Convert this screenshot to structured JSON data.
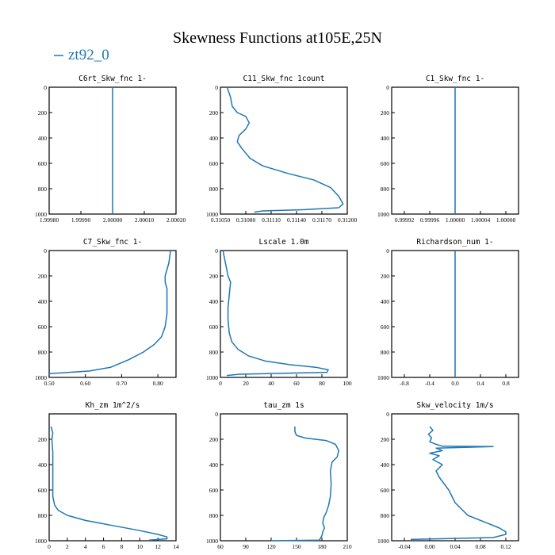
{
  "figure": {
    "title": "Skewness Functions at105E,25N",
    "legend": [
      {
        "label": "zt92_0",
        "color": "#1f77b4"
      }
    ]
  },
  "chart_data": [
    {
      "type": "line",
      "title": "C6rt_Skw_fnc  1-",
      "xlim": [
        1.9998,
        2.0002
      ],
      "ylim": [
        1000,
        0
      ],
      "xticks": [
        "1.99980",
        "1.99990",
        "2.00000",
        "2.00010",
        "2.00020"
      ],
      "yticks": [
        "0",
        "200",
        "400",
        "600",
        "800",
        "1000"
      ],
      "x": [
        2.0,
        2.0
      ],
      "y": [
        0,
        1000
      ]
    },
    {
      "type": "line",
      "title": "C11_Skw_fnc  1count",
      "xlim": [
        0.3105,
        0.312
      ],
      "ylim": [
        1000,
        0
      ],
      "xticks": [
        "0.31050",
        "0.31080",
        "0.31110",
        "0.31140",
        "0.31170",
        "0.31200"
      ],
      "yticks": [
        "0",
        "200",
        "400",
        "600",
        "800",
        "1000"
      ],
      "x": [
        0.31058,
        0.31062,
        0.31064,
        0.3107,
        0.3108,
        0.31084,
        0.3108,
        0.31072,
        0.3107,
        0.31075,
        0.31085,
        0.311,
        0.3113,
        0.3116,
        0.3118,
        0.3119,
        0.31195,
        0.3119,
        0.3115,
        0.311,
        0.3109
      ],
      "y": [
        0,
        80,
        150,
        200,
        230,
        280,
        330,
        380,
        430,
        480,
        560,
        620,
        680,
        730,
        790,
        860,
        920,
        950,
        965,
        975,
        985
      ]
    },
    {
      "type": "line",
      "title": "C1_Skw_fnc  1-",
      "xlim": [
        0.9999,
        1.0001
      ],
      "ylim": [
        1000,
        0
      ],
      "xticks": [
        "0.99992",
        "0.99996",
        "1.00000",
        "1.00004",
        "1.00008"
      ],
      "yticks": [
        "0",
        "200",
        "400",
        "600",
        "800",
        "1000"
      ],
      "x": [
        1.0,
        1.0
      ],
      "y": [
        0,
        1000
      ]
    },
    {
      "type": "line",
      "title": "C7_Skw_fnc  1-",
      "xlim": [
        0.5,
        0.85
      ],
      "ylim": [
        1000,
        0
      ],
      "xticks": [
        "0.50",
        "0.60",
        "0.70",
        "0.80"
      ],
      "yticks": [
        "0",
        "200",
        "400",
        "600",
        "800",
        "1000"
      ],
      "x": [
        0.835,
        0.83,
        0.82,
        0.82,
        0.825,
        0.825,
        0.825,
        0.82,
        0.81,
        0.79,
        0.76,
        0.72,
        0.67,
        0.61,
        0.5
      ],
      "y": [
        0,
        100,
        200,
        250,
        300,
        400,
        500,
        600,
        680,
        740,
        800,
        860,
        920,
        950,
        970
      ]
    },
    {
      "type": "line",
      "title": "Lscale  1.0m",
      "xlim": [
        0,
        100
      ],
      "ylim": [
        1000,
        0
      ],
      "xticks": [
        "0",
        "20",
        "40",
        "60",
        "80",
        "100"
      ],
      "yticks": [
        "0",
        "200",
        "400",
        "600",
        "800",
        "1000"
      ],
      "x": [
        2,
        4,
        6,
        8,
        7,
        6,
        6,
        7,
        9,
        14,
        22,
        35,
        55,
        75,
        85,
        84,
        15,
        5
      ],
      "y": [
        0,
        100,
        200,
        250,
        350,
        450,
        550,
        650,
        720,
        780,
        830,
        870,
        900,
        920,
        940,
        960,
        975,
        985
      ]
    },
    {
      "type": "line",
      "title": "Richardson_num  1-",
      "xlim": [
        -1,
        1
      ],
      "ylim": [
        1000,
        0
      ],
      "xticks": [
        "-0.8",
        "-0.4",
        "0.0",
        "0.4",
        "0.8"
      ],
      "yticks": [
        "0",
        "200",
        "400",
        "600",
        "800",
        "1000"
      ],
      "x": [
        0,
        0
      ],
      "y": [
        0,
        1000
      ]
    },
    {
      "type": "line",
      "title": "Kh_zm   1m^2/s",
      "xlim": [
        0,
        14
      ],
      "ylim": [
        1000,
        0
      ],
      "xticks": [
        "0",
        "2",
        "4",
        "6",
        "8",
        "10",
        "12",
        "14"
      ],
      "yticks": [
        "200",
        "400",
        "600",
        "800",
        "1000"
      ],
      "x": [
        0.2,
        0.4,
        0.3,
        0.4,
        0.4,
        0.4,
        0.6,
        1.0,
        2.0,
        4.0,
        7.0,
        10.0,
        12.0,
        13.0,
        13.0,
        11.0
      ],
      "y": [
        100,
        150,
        200,
        300,
        500,
        650,
        720,
        760,
        800,
        840,
        880,
        920,
        950,
        970,
        985,
        995
      ]
    },
    {
      "type": "line",
      "title": "tau_zm   1s",
      "xlim": [
        60,
        210
      ],
      "ylim": [
        1000,
        0
      ],
      "xticks": [
        "60",
        "90",
        "120",
        "150",
        "180",
        "210"
      ],
      "yticks": [
        "0",
        "200",
        "400",
        "600",
        "800",
        "1000"
      ],
      "x": [
        148,
        148,
        150,
        160,
        172,
        185,
        196,
        200,
        198,
        192,
        190,
        191,
        190,
        188,
        185,
        182,
        181,
        183,
        181,
        180,
        177,
        120
      ],
      "y": [
        100,
        140,
        170,
        190,
        200,
        210,
        240,
        290,
        340,
        380,
        450,
        550,
        650,
        720,
        780,
        820,
        860,
        900,
        930,
        960,
        995,
        1000
      ]
    },
    {
      "type": "line",
      "title": "Skw_velocity   1m/s",
      "xlim": [
        -0.06,
        0.14
      ],
      "ylim": [
        1000,
        0
      ],
      "xticks": [
        "-0.04",
        "0.00",
        "0.04",
        "0.08",
        "0.12"
      ],
      "yticks": [
        "0",
        "200",
        "400",
        "600",
        "800",
        "1000"
      ],
      "x": [
        0.0,
        0.005,
        -0.002,
        0.003,
        0.0,
        0.01,
        0.02,
        0.1,
        0.01,
        0.02,
        0.0,
        0.015,
        0.005,
        0.02,
        0.01,
        0.015,
        0.03,
        0.04,
        0.06,
        0.09,
        0.11,
        0.12,
        0.12,
        0.1,
        -0.03
      ],
      "y": [
        100,
        130,
        160,
        190,
        220,
        240,
        255,
        258,
        270,
        290,
        310,
        330,
        360,
        400,
        450,
        500,
        600,
        700,
        800,
        860,
        900,
        930,
        950,
        975,
        990
      ]
    }
  ]
}
